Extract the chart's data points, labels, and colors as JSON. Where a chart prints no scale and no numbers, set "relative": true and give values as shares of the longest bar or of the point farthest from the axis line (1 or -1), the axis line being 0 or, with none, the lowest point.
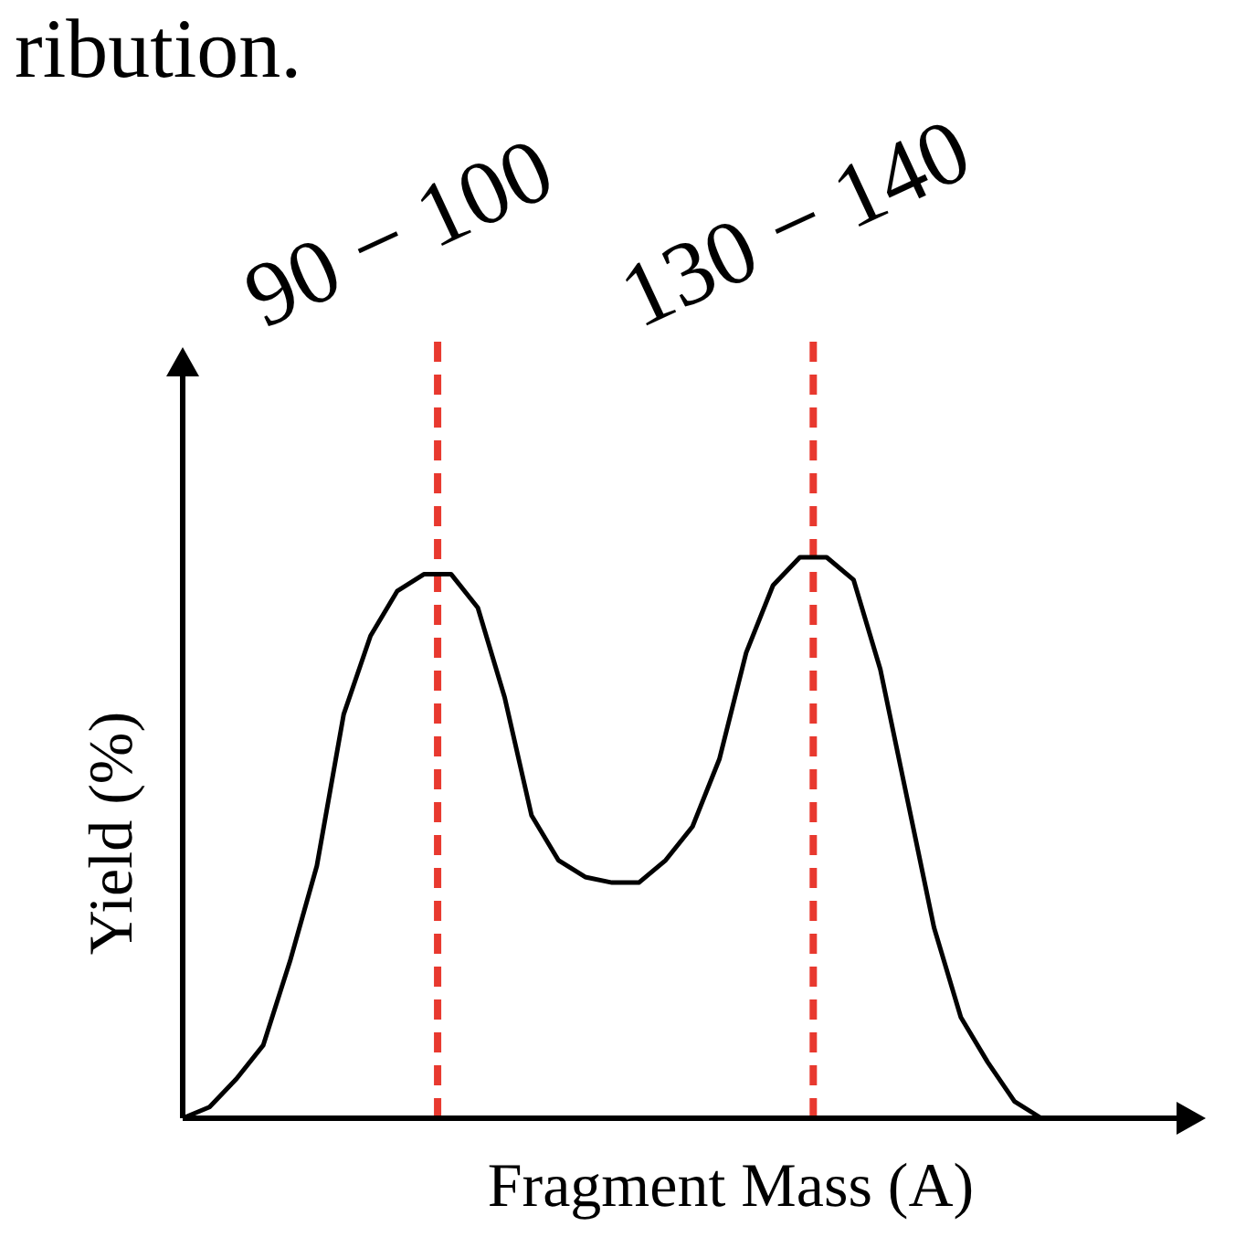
{
  "chart_data": {
    "type": "line",
    "xlabel": "Fragment Mass (A)",
    "ylabel": "Yield (%)",
    "relative": true,
    "categories": [
      null,
      null,
      null,
      null,
      null,
      null,
      null,
      null,
      null,
      null,
      null,
      null,
      null,
      null,
      null,
      null,
      null,
      null,
      null,
      null,
      null,
      null,
      null,
      null,
      null,
      null,
      null,
      null,
      null,
      null,
      null,
      null,
      null
    ],
    "annotations": [
      "ribution.",
      "90 − 100",
      "130 − 140"
    ],
    "series": [
      {
        "color": "#000000",
        "values": [
          0,
          0.02,
          0.07,
          0.13,
          0.28,
          0.45,
          0.72,
          0.86,
          0.94,
          0.97,
          0.97,
          0.91,
          0.75,
          0.54,
          0.46,
          0.43,
          0.42,
          0.42,
          0.46,
          0.52,
          0.64,
          0.83,
          0.95,
          1,
          1,
          0.96,
          0.8,
          0.57,
          0.34,
          0.18,
          0.1,
          0.03,
          0
        ]
      }
    ]
  }
}
